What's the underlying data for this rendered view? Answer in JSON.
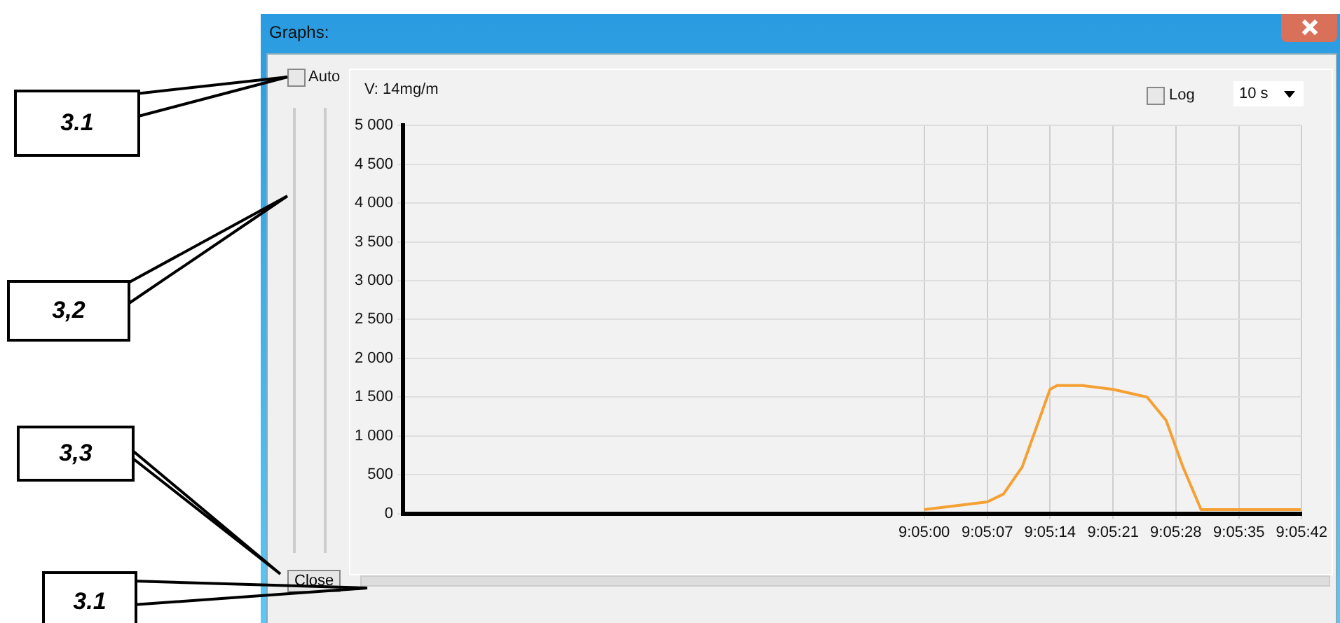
{
  "chart_data": {
    "type": "line",
    "title": "Graphs:",
    "x": [
      9.08333,
      9.08528,
      9.08578,
      9.08636,
      9.08675,
      9.08722,
      9.08744,
      9.08822,
      9.08917,
      9.09022,
      9.09081,
      9.09133,
      9.09189,
      9.09325,
      9.09497
    ],
    "series": [
      {
        "color": "#f5a033",
        "values": [
          50,
          150,
          250,
          600,
          1050,
          1600,
          1650,
          1650,
          1600,
          1500,
          1200,
          600,
          50,
          50,
          50
        ]
      }
    ],
    "xlim": [
      9.06722,
      9.095
    ],
    "xticks": [
      {
        "value": 9.08333,
        "label": "9:05:00"
      },
      {
        "value": 9.08528,
        "label": "9:05:07"
      },
      {
        "value": 9.08722,
        "label": "9:05:14"
      },
      {
        "value": 9.08917,
        "label": "9:05:21"
      },
      {
        "value": 9.09111,
        "label": "9:05:28"
      },
      {
        "value": 9.09306,
        "label": "9:05:35"
      },
      {
        "value": 9.095,
        "label": "9:05:42"
      }
    ],
    "ylim": [
      0,
      5000
    ],
    "yticks": [
      0,
      500,
      {
        "value": 1000,
        "label": "1 000"
      },
      {
        "value": 1500,
        "label": "1 500"
      },
      {
        "value": 2000,
        "label": "2 000"
      },
      {
        "value": 2500,
        "label": "2 500"
      },
      {
        "value": 3000,
        "label": "3 000"
      },
      {
        "value": 3500,
        "label": "3 500"
      },
      {
        "value": 4000,
        "label": "4 000"
      },
      {
        "value": 4500,
        "label": "4 500"
      },
      {
        "value": 5000,
        "label": "5 000"
      }
    ],
    "grid": true,
    "legend": false,
    "marker": "none",
    "line_style": "solid",
    "annotations": [
      "V: 14mg/m",
      "Auto",
      "Log",
      "10 s",
      "Close",
      "3.1",
      "3,2",
      "3,3",
      "3.1"
    ]
  }
}
